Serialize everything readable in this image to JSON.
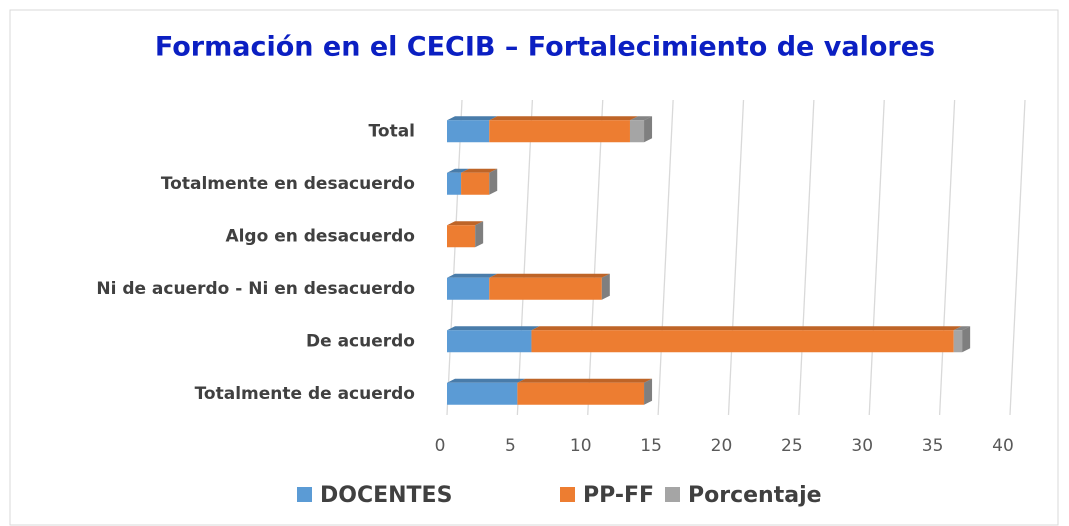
{
  "chart_data": {
    "type": "stacked_bar_horizontal",
    "title": "Formación en el CECIB – Fortalecimiento de valores",
    "categories": [
      "Total",
      "Totalmente en desacuerdo",
      "Algo en desacuerdo",
      "Ni de acuerdo - Ni en desacuerdo",
      "De acuerdo",
      "Totalmente de acuerdo"
    ],
    "series": [
      {
        "name": "DOCENTES",
        "color": "#5b9bd5",
        "values": [
          3,
          1,
          0,
          3,
          6,
          5
        ]
      },
      {
        "name": "PP-FF",
        "color": "#ed7d31",
        "values": [
          10,
          2,
          2,
          8,
          30,
          9
        ]
      },
      {
        "name": "Porcentaje",
        "color": "#a5a5a5",
        "values": [
          1,
          0,
          0,
          0,
          0.6,
          0
        ]
      }
    ],
    "xlim": [
      0,
      40
    ],
    "xticks": [
      0,
      5,
      10,
      15,
      20,
      25,
      30,
      35,
      40
    ],
    "grid": true,
    "legend": "bottom"
  }
}
